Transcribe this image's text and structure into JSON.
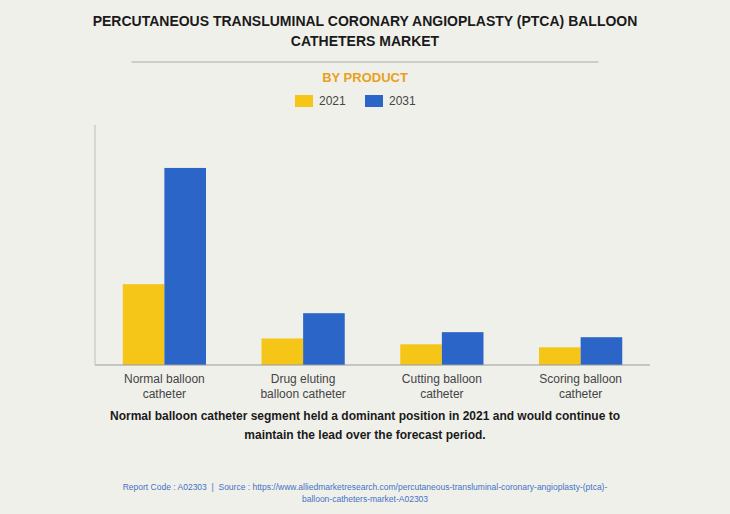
{
  "chart_data": {
    "type": "bar",
    "title": "PERCUTANEOUS TRANSLUMINAL CORONARY ANGIOPLASTY (PTCA) BALLOON\nCATHETERS MARKET",
    "subtitle": "BY PRODUCT",
    "categories": [
      "Normal balloon\ncatheter",
      "Drug eluting\nballoon catheter",
      "Cutting balloon\ncatheter",
      "Scoring balloon\ncatheter"
    ],
    "series": [
      {
        "name": "2021",
        "color": "#F5C518",
        "values": [
          3.2,
          1.05,
          0.82,
          0.7
        ]
      },
      {
        "name": "2031",
        "color": "#2B65C8",
        "values": [
          7.8,
          2.05,
          1.3,
          1.1
        ]
      }
    ],
    "ylim": [
      0,
      9.5
    ],
    "yticks": [],
    "grid": false,
    "tick_labels": "x",
    "legend": "top",
    "annotations": [
      "Normal balloon catheter segment held a dominant position in 2021 and would continue to\nmaintain the lead over the forecast period.",
      "Report Code : A02303  |  Source : https://www.alliedmarketresearch.com/percutaneous-transluminal-coronary-angioplasty-(ptca)-\nballoon-catheters-market-A02303"
    ]
  }
}
